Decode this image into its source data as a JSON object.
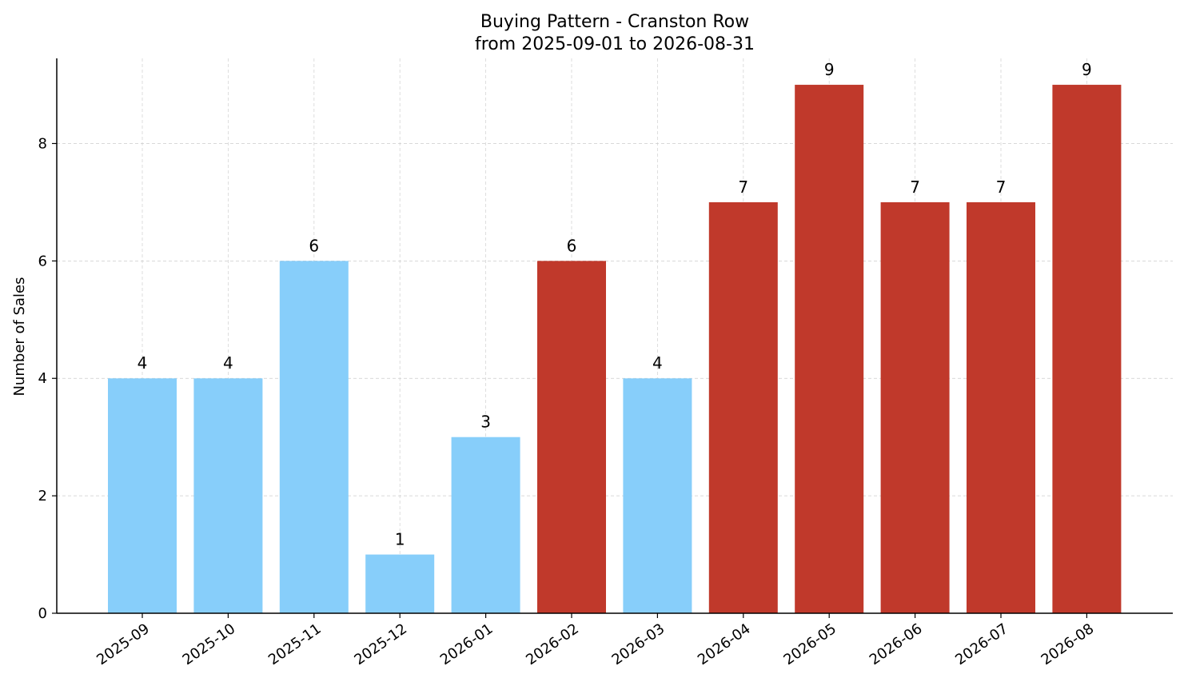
{
  "chart_data": {
    "type": "bar",
    "title": "Buying Pattern - Cranston Row",
    "subtitle": "from 2025-09-01 to 2026-08-31",
    "xlabel": "",
    "ylabel": "Number of Sales",
    "categories": [
      "2025-09",
      "2025-10",
      "2025-11",
      "2025-12",
      "2026-01",
      "2026-02",
      "2026-03",
      "2026-04",
      "2026-05",
      "2026-06",
      "2026-07",
      "2026-08"
    ],
    "values": [
      4,
      4,
      6,
      1,
      3,
      6,
      4,
      7,
      9,
      7,
      7,
      9
    ],
    "bar_colors": [
      "#87cefa",
      "#87cefa",
      "#87cefa",
      "#87cefa",
      "#87cefa",
      "#c0392b",
      "#87cefa",
      "#c0392b",
      "#c0392b",
      "#c0392b",
      "#c0392b",
      "#c0392b"
    ],
    "ylim": [
      0,
      9.45
    ],
    "yticks": [
      0,
      2,
      4,
      6,
      8
    ],
    "grid": true,
    "data_labels": true
  }
}
